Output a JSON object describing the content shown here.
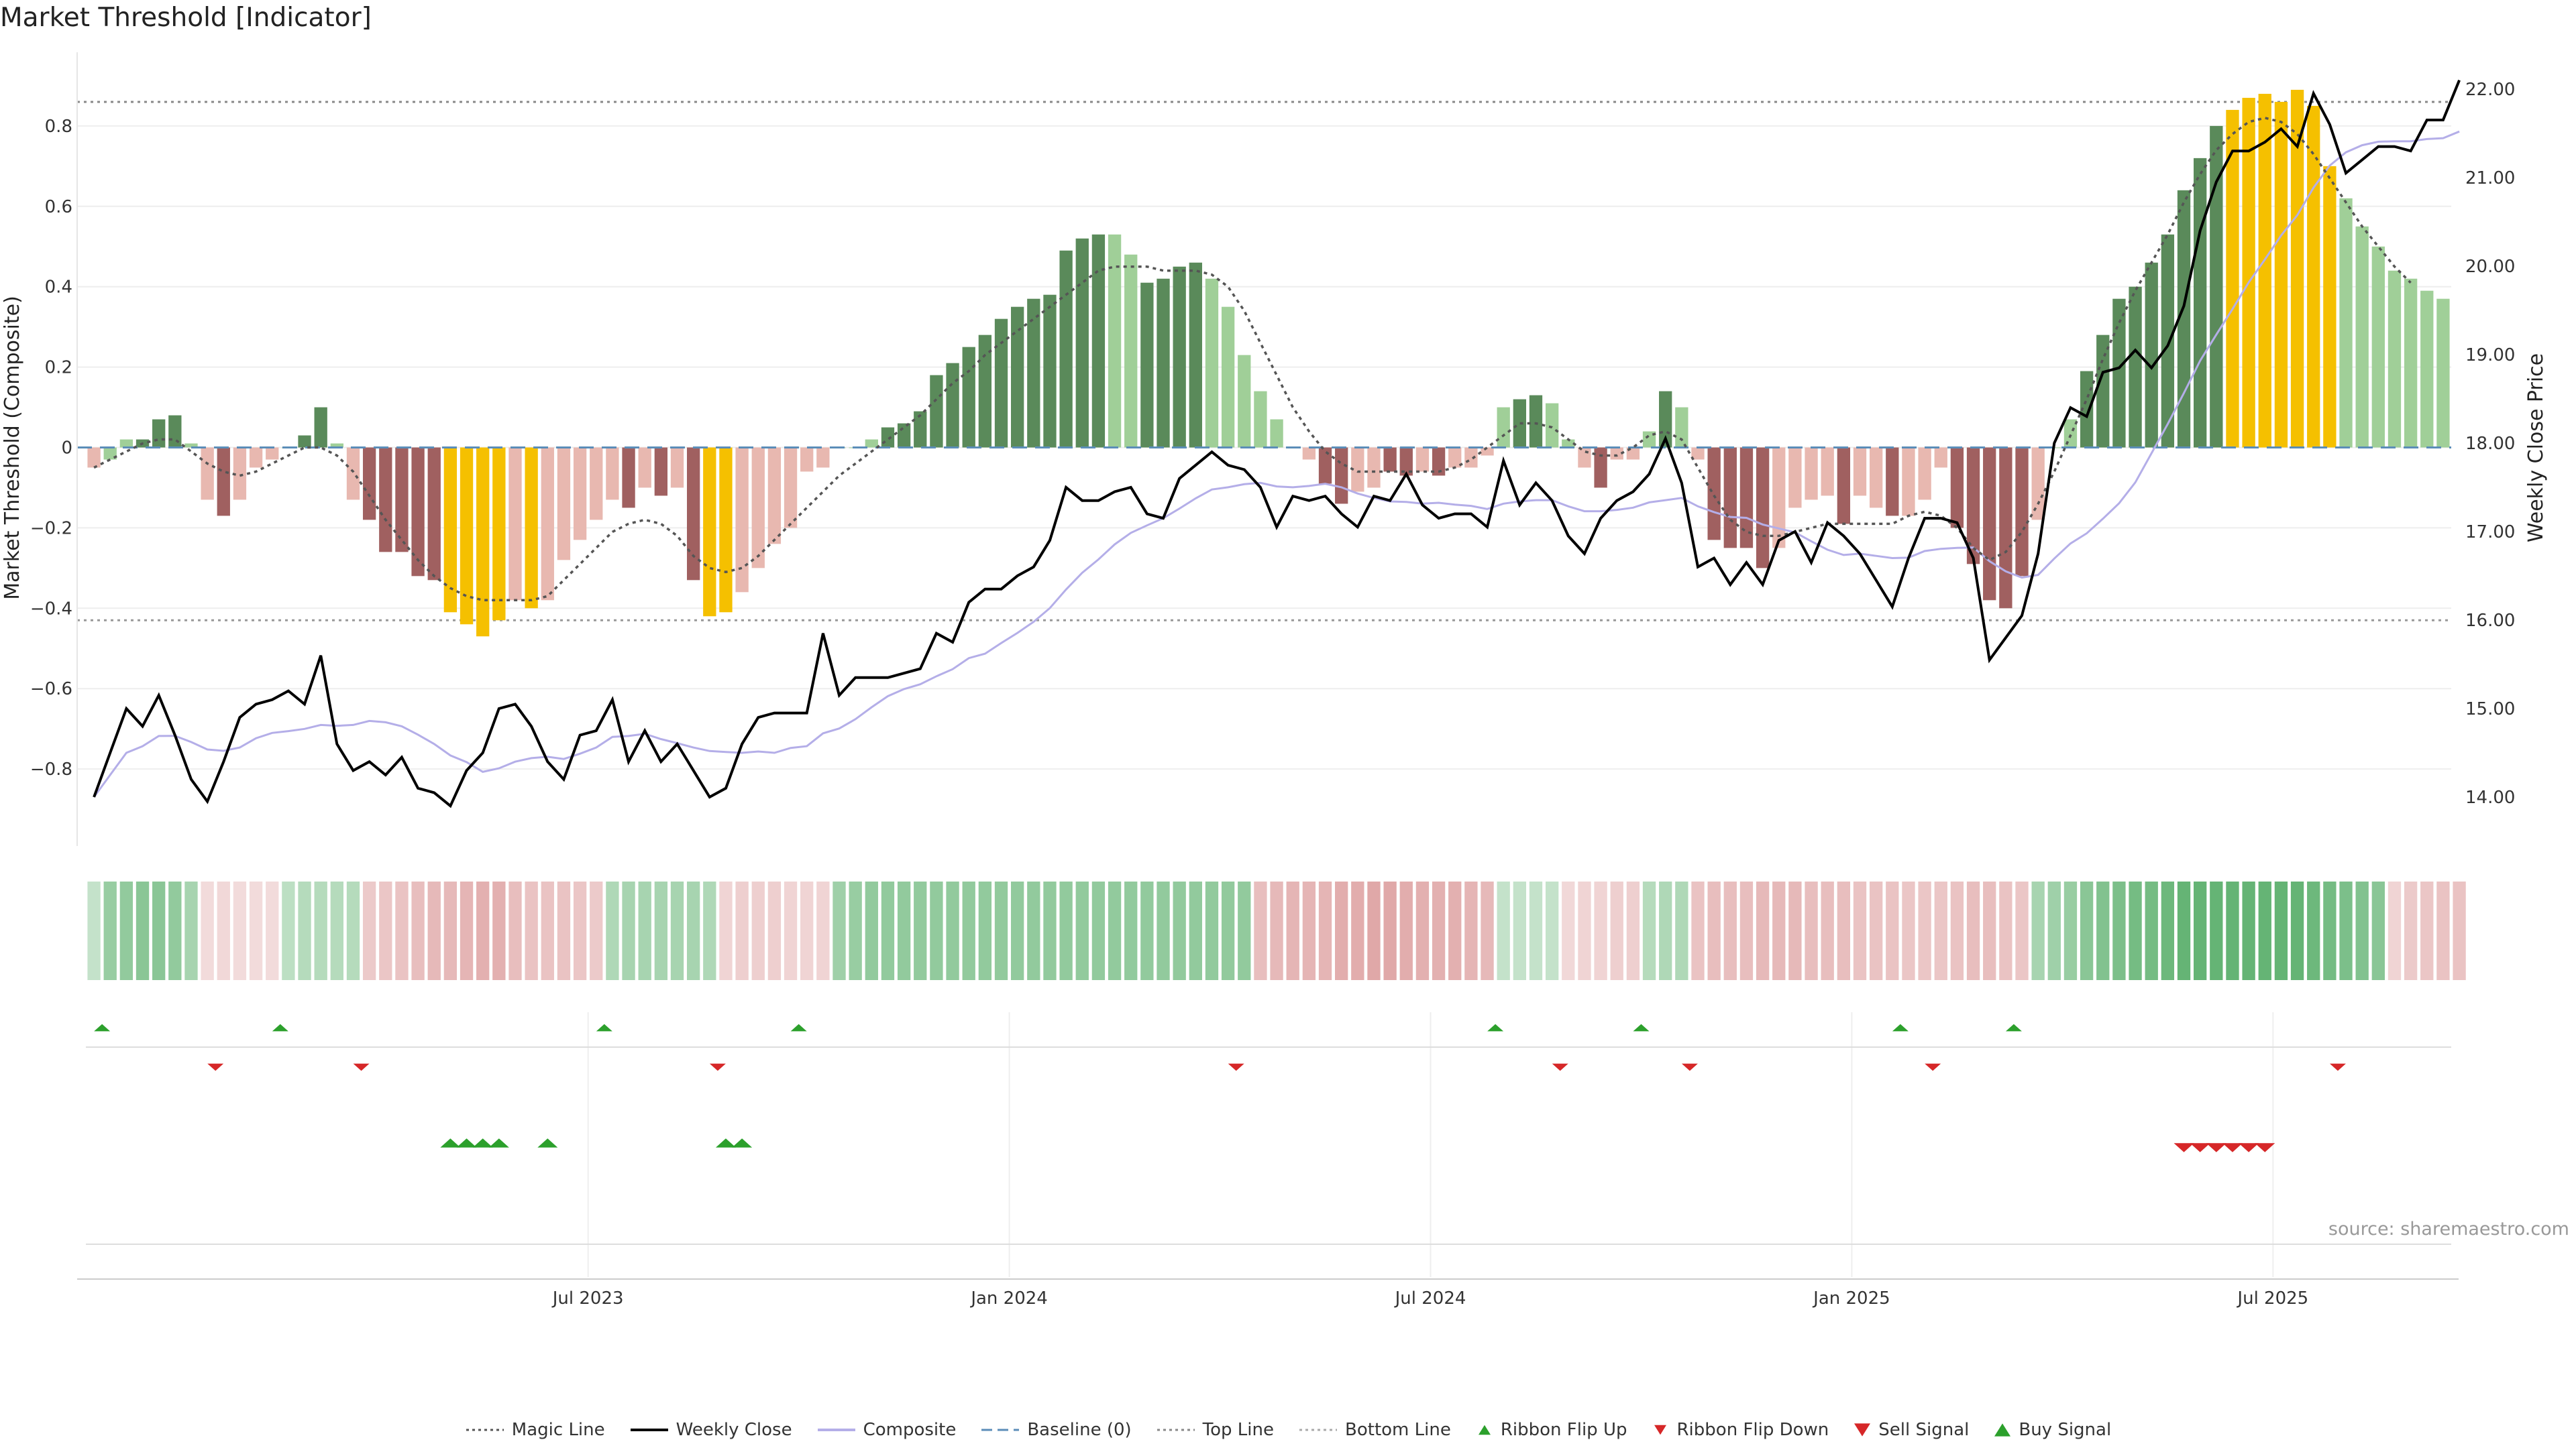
{
  "title": "Market Threshold [Indicator]",
  "source": "source: sharemaestro.com",
  "chart_data": {
    "type": "bar",
    "title": "Market Threshold [Indicator]",
    "ylabel_left": "Market Threshold (Composite)",
    "ylabel_right": "Weekly Close Price",
    "ylim_left": [
      -0.98,
      0.98
    ],
    "ylim_right": [
      13.5,
      22.4
    ],
    "left_ticks": [
      "0.8",
      "0.6",
      "0.4",
      "0.2",
      "0",
      "−0.2",
      "−0.4",
      "−0.6",
      "−0.8"
    ],
    "left_tick_values": [
      0.8,
      0.6,
      0.4,
      0.2,
      0,
      -0.2,
      -0.4,
      -0.6,
      -0.8
    ],
    "right_ticks": [
      "22.00",
      "21.00",
      "20.00",
      "19.00",
      "18.00",
      "17.00",
      "16.00",
      "15.00",
      "14.00"
    ],
    "right_tick_values": [
      22,
      21,
      20,
      19,
      18,
      17,
      16,
      15,
      14
    ],
    "x_ticks": [
      {
        "label": "Jul 2023",
        "week": 31
      },
      {
        "label": "Jan 2024",
        "week": 57
      },
      {
        "label": "Jul 2024",
        "week": 83
      },
      {
        "label": "Jan 2025",
        "week": 109
      },
      {
        "label": "Jul 2025",
        "week": 135
      }
    ],
    "top_line": 0.86,
    "bottom_line": -0.43,
    "baseline": 0,
    "composite": [
      -0.05,
      -0.03,
      0.02,
      0.02,
      0.07,
      0.08,
      0.01,
      -0.13,
      -0.17,
      -0.13,
      -0.05,
      -0.03,
      0.0,
      0.03,
      0.1,
      0.01,
      -0.13,
      -0.18,
      -0.26,
      -0.26,
      -0.32,
      -0.33,
      -0.41,
      -0.44,
      -0.47,
      -0.43,
      -0.38,
      -0.4,
      -0.38,
      -0.28,
      -0.23,
      -0.18,
      -0.13,
      -0.15,
      -0.1,
      -0.12,
      -0.1,
      -0.33,
      -0.42,
      -0.41,
      -0.36,
      -0.3,
      -0.24,
      -0.2,
      -0.06,
      -0.05,
      0.0,
      0.0,
      0.02,
      0.05,
      0.06,
      0.09,
      0.18,
      0.21,
      0.25,
      0.28,
      0.32,
      0.35,
      0.37,
      0.38,
      0.49,
      0.52,
      0.53,
      0.53,
      0.48,
      0.41,
      0.42,
      0.45,
      0.46,
      0.42,
      0.35,
      0.23,
      0.14,
      0.07,
      0.0,
      -0.03,
      -0.09,
      -0.14,
      -0.11,
      -0.1,
      -0.06,
      -0.07,
      -0.06,
      -0.07,
      -0.05,
      -0.05,
      -0.02,
      0.1,
      0.12,
      0.13,
      0.11,
      0.02,
      -0.05,
      -0.1,
      -0.03,
      -0.03,
      0.04,
      0.14,
      0.1,
      -0.03,
      -0.23,
      -0.25,
      -0.25,
      -0.3,
      -0.25,
      -0.15,
      -0.13,
      -0.12,
      -0.19,
      -0.12,
      -0.15,
      -0.17,
      -0.17,
      -0.13,
      -0.05,
      -0.2,
      -0.29,
      -0.38,
      -0.4,
      -0.32,
      -0.18,
      0.0,
      0.07,
      0.19,
      0.28,
      0.37,
      0.4,
      0.46,
      0.53,
      0.64,
      0.72,
      0.8,
      0.84,
      0.87,
      0.88,
      0.86,
      0.89,
      0.85,
      0.7,
      0.62,
      0.55,
      0.5,
      0.44,
      0.42,
      0.39,
      0.37
    ],
    "bar_colors": [
      "#e8b8b0",
      "#a0cf98",
      "#a0cf98",
      "#5a8a5a",
      "#5a8a5a",
      "#5a8a5a",
      "#a0cf98",
      "#e8b8b0",
      "#a06060",
      "#e8b8b0",
      "#e8b8b0",
      "#e8b8b0",
      "#a0cf98",
      "#5a8a5a",
      "#5a8a5a",
      "#a0cf98",
      "#e8b8b0",
      "#a06060",
      "#a06060",
      "#a06060",
      "#a06060",
      "#a06060",
      "#f5c000",
      "#f5c000",
      "#f5c000",
      "#f5c000",
      "#e8b8b0",
      "#f5c000",
      "#e8b8b0",
      "#e8b8b0",
      "#e8b8b0",
      "#e8b8b0",
      "#e8b8b0",
      "#a06060",
      "#e8b8b0",
      "#a06060",
      "#e8b8b0",
      "#a06060",
      "#f5c000",
      "#f5c000",
      "#e8b8b0",
      "#e8b8b0",
      "#e8b8b0",
      "#e8b8b0",
      "#e8b8b0",
      "#e8b8b0",
      "#a0cf98",
      "#a0cf98",
      "#a0cf98",
      "#5a8a5a",
      "#5a8a5a",
      "#5a8a5a",
      "#5a8a5a",
      "#5a8a5a",
      "#5a8a5a",
      "#5a8a5a",
      "#5a8a5a",
      "#5a8a5a",
      "#5a8a5a",
      "#5a8a5a",
      "#5a8a5a",
      "#5a8a5a",
      "#5a8a5a",
      "#a0cf98",
      "#a0cf98",
      "#5a8a5a",
      "#5a8a5a",
      "#5a8a5a",
      "#5a8a5a",
      "#a0cf98",
      "#a0cf98",
      "#a0cf98",
      "#a0cf98",
      "#a0cf98",
      "#a0cf98",
      "#e8b8b0",
      "#a06060",
      "#a06060",
      "#e8b8b0",
      "#e8b8b0",
      "#a06060",
      "#a06060",
      "#e8b8b0",
      "#a06060",
      "#e8b8b0",
      "#e8b8b0",
      "#e8b8b0",
      "#a0cf98",
      "#5a8a5a",
      "#5a8a5a",
      "#a0cf98",
      "#a0cf98",
      "#e8b8b0",
      "#a06060",
      "#e8b8b0",
      "#e8b8b0",
      "#a0cf98",
      "#5a8a5a",
      "#a0cf98",
      "#e8b8b0",
      "#a06060",
      "#a06060",
      "#a06060",
      "#a06060",
      "#e8b8b0",
      "#e8b8b0",
      "#e8b8b0",
      "#e8b8b0",
      "#a06060",
      "#e8b8b0",
      "#e8b8b0",
      "#a06060",
      "#e8b8b0",
      "#e8b8b0",
      "#e8b8b0",
      "#a06060",
      "#a06060",
      "#a06060",
      "#a06060",
      "#a06060",
      "#e8b8b0",
      "#a0cf98",
      "#a0cf98",
      "#5a8a5a",
      "#5a8a5a",
      "#5a8a5a",
      "#5a8a5a",
      "#5a8a5a",
      "#5a8a5a",
      "#5a8a5a",
      "#5a8a5a",
      "#5a8a5a",
      "#f5c000",
      "#f5c000",
      "#f5c000",
      "#f5c000",
      "#f5c000",
      "#f5c000",
      "#f5c000",
      "#a0cf98",
      "#a0cf98",
      "#a0cf98",
      "#a0cf98",
      "#a0cf98",
      "#a0cf98",
      "#a0cf98",
      "#a0cf98"
    ],
    "weekly_close": [
      14.0,
      14.5,
      15.0,
      14.8,
      15.15,
      14.7,
      14.2,
      13.95,
      14.4,
      14.9,
      15.05,
      15.1,
      15.2,
      15.05,
      15.6,
      14.6,
      14.3,
      14.4,
      14.25,
      14.45,
      14.1,
      14.05,
      13.9,
      14.3,
      14.5,
      15.0,
      15.05,
      14.8,
      14.4,
      14.2,
      14.7,
      14.75,
      15.1,
      14.4,
      14.75,
      14.4,
      14.6,
      14.3,
      14.0,
      14.1,
      14.6,
      14.9,
      14.95,
      14.95,
      14.95,
      15.85,
      15.15,
      15.35,
      15.35,
      15.35,
      15.4,
      15.45,
      15.85,
      15.75,
      16.2,
      16.35,
      16.35,
      16.5,
      16.6,
      16.9,
      17.5,
      17.35,
      17.35,
      17.45,
      17.5,
      17.2,
      17.15,
      17.6,
      17.75,
      17.9,
      17.75,
      17.7,
      17.5,
      17.05,
      17.4,
      17.35,
      17.4,
      17.2,
      17.05,
      17.4,
      17.35,
      17.65,
      17.3,
      17.15,
      17.2,
      17.2,
      17.05,
      17.8,
      17.3,
      17.55,
      17.35,
      16.95,
      16.75,
      17.15,
      17.35,
      17.45,
      17.65,
      18.05,
      17.55,
      16.6,
      16.7,
      16.4,
      16.65,
      16.4,
      16.9,
      17.0,
      16.65,
      17.1,
      16.95,
      16.75,
      16.45,
      16.15,
      16.7,
      17.15,
      17.15,
      17.1,
      16.7,
      15.55,
      15.8,
      16.05,
      16.75,
      18.0,
      18.4,
      18.3,
      18.8,
      18.85,
      19.05,
      18.85,
      19.1,
      19.55,
      20.4,
      20.95,
      21.3,
      21.3,
      21.4,
      21.55,
      21.35,
      21.95,
      21.6,
      21.05,
      21.2,
      21.35,
      21.35,
      21.3,
      21.65,
      21.65,
      22.1
    ],
    "magic_line": [
      -0.05,
      -0.03,
      -0.01,
      0.01,
      0.02,
      0.02,
      -0.01,
      -0.04,
      -0.06,
      -0.07,
      -0.06,
      -0.04,
      -0.02,
      0.0,
      0.0,
      -0.02,
      -0.06,
      -0.12,
      -0.18,
      -0.23,
      -0.28,
      -0.32,
      -0.35,
      -0.37,
      -0.38,
      -0.38,
      -0.38,
      -0.38,
      -0.37,
      -0.33,
      -0.29,
      -0.25,
      -0.21,
      -0.19,
      -0.18,
      -0.19,
      -0.22,
      -0.27,
      -0.3,
      -0.31,
      -0.3,
      -0.27,
      -0.23,
      -0.19,
      -0.15,
      -0.11,
      -0.07,
      -0.04,
      -0.01,
      0.02,
      0.05,
      0.08,
      0.12,
      0.16,
      0.19,
      0.23,
      0.26,
      0.29,
      0.32,
      0.35,
      0.38,
      0.41,
      0.44,
      0.45,
      0.45,
      0.45,
      0.44,
      0.44,
      0.44,
      0.43,
      0.4,
      0.34,
      0.26,
      0.18,
      0.1,
      0.04,
      -0.01,
      -0.04,
      -0.06,
      -0.06,
      -0.06,
      -0.06,
      -0.06,
      -0.06,
      -0.05,
      -0.03,
      0.0,
      0.03,
      0.06,
      0.06,
      0.05,
      0.02,
      -0.01,
      -0.02,
      -0.02,
      0.0,
      0.03,
      0.04,
      0.02,
      -0.05,
      -0.12,
      -0.18,
      -0.21,
      -0.22,
      -0.22,
      -0.21,
      -0.2,
      -0.19,
      -0.19,
      -0.19,
      -0.19,
      -0.19,
      -0.17,
      -0.16,
      -0.17,
      -0.2,
      -0.25,
      -0.28,
      -0.26,
      -0.21,
      -0.14,
      -0.06,
      0.03,
      0.12,
      0.22,
      0.31,
      0.39,
      0.46,
      0.53,
      0.61,
      0.68,
      0.74,
      0.78,
      0.81,
      0.82,
      0.81,
      0.78,
      0.73,
      0.67,
      0.61,
      0.55,
      0.5,
      0.45,
      0.41
    ],
    "ribbon": [
      0.2,
      0.5,
      0.55,
      0.6,
      0.6,
      0.55,
      0.4,
      -0.2,
      -0.25,
      -0.2,
      -0.2,
      -0.2,
      0.25,
      0.3,
      0.3,
      0.3,
      0.3,
      -0.4,
      -0.45,
      -0.5,
      -0.55,
      -0.6,
      -0.6,
      -0.65,
      -0.7,
      -0.7,
      -0.55,
      -0.5,
      -0.5,
      -0.5,
      -0.45,
      -0.4,
      0.35,
      0.4,
      0.4,
      0.4,
      0.4,
      0.4,
      0.35,
      -0.3,
      -0.35,
      -0.35,
      -0.35,
      -0.3,
      -0.3,
      -0.3,
      0.45,
      0.5,
      0.55,
      0.55,
      0.55,
      0.55,
      0.55,
      0.55,
      0.55,
      0.55,
      0.55,
      0.55,
      0.55,
      0.55,
      0.55,
      0.55,
      0.55,
      0.55,
      0.55,
      0.55,
      0.55,
      0.55,
      0.55,
      0.55,
      0.55,
      0.55,
      -0.55,
      -0.6,
      -0.65,
      -0.65,
      -0.65,
      -0.75,
      -0.75,
      -0.8,
      -0.8,
      -0.75,
      -0.7,
      -0.7,
      -0.7,
      -0.65,
      -0.6,
      0.2,
      0.2,
      0.2,
      0.2,
      -0.25,
      -0.3,
      -0.3,
      -0.35,
      -0.35,
      0.3,
      0.35,
      0.35,
      -0.5,
      -0.55,
      -0.55,
      -0.55,
      -0.6,
      -0.6,
      -0.6,
      -0.55,
      -0.55,
      -0.55,
      -0.5,
      -0.5,
      -0.5,
      -0.45,
      -0.45,
      -0.45,
      -0.5,
      -0.55,
      -0.55,
      -0.5,
      -0.45,
      0.4,
      0.45,
      0.5,
      0.6,
      0.65,
      0.7,
      0.75,
      0.75,
      0.8,
      0.85,
      0.85,
      0.85,
      0.85,
      0.85,
      0.85,
      0.85,
      0.85,
      0.8,
      0.75,
      0.7,
      0.65,
      0.6,
      -0.3,
      -0.4,
      -0.45,
      -0.5,
      -0.5
    ],
    "ribbon_flip_up_weeks": [
      1,
      12,
      32,
      44,
      87,
      96,
      112,
      119
    ],
    "ribbon_flip_down_weeks": [
      8,
      17,
      39,
      71,
      91,
      99,
      114,
      139
    ],
    "buy_signal_weeks": [
      22,
      23,
      24,
      25,
      28,
      39,
      40
    ],
    "sell_signal_weeks": [
      129,
      130,
      131,
      132,
      133,
      134
    ],
    "legend": [
      {
        "label": "Magic Line",
        "style": "dotted",
        "color": "#555555"
      },
      {
        "label": "Weekly Close",
        "style": "solid",
        "color": "#000000"
      },
      {
        "label": "Composite",
        "style": "solid",
        "color": "#b4aee8"
      },
      {
        "label": "Baseline (0)",
        "style": "dashed",
        "color": "#5b8db8"
      },
      {
        "label": "Top Line",
        "style": "dotted",
        "color": "#888888"
      },
      {
        "label": "Bottom Line",
        "style": "dotted",
        "color": "#aaaaaa"
      },
      {
        "label": "Ribbon Flip Up",
        "style": "triangle-up-small",
        "color": "#2ca02c"
      },
      {
        "label": "Ribbon Flip Down",
        "style": "triangle-down-small",
        "color": "#d62728"
      },
      {
        "label": "Sell Signal",
        "style": "triangle-down",
        "color": "#d62728"
      },
      {
        "label": "Buy Signal",
        "style": "triangle-up",
        "color": "#2ca02c"
      }
    ],
    "grid": true
  }
}
